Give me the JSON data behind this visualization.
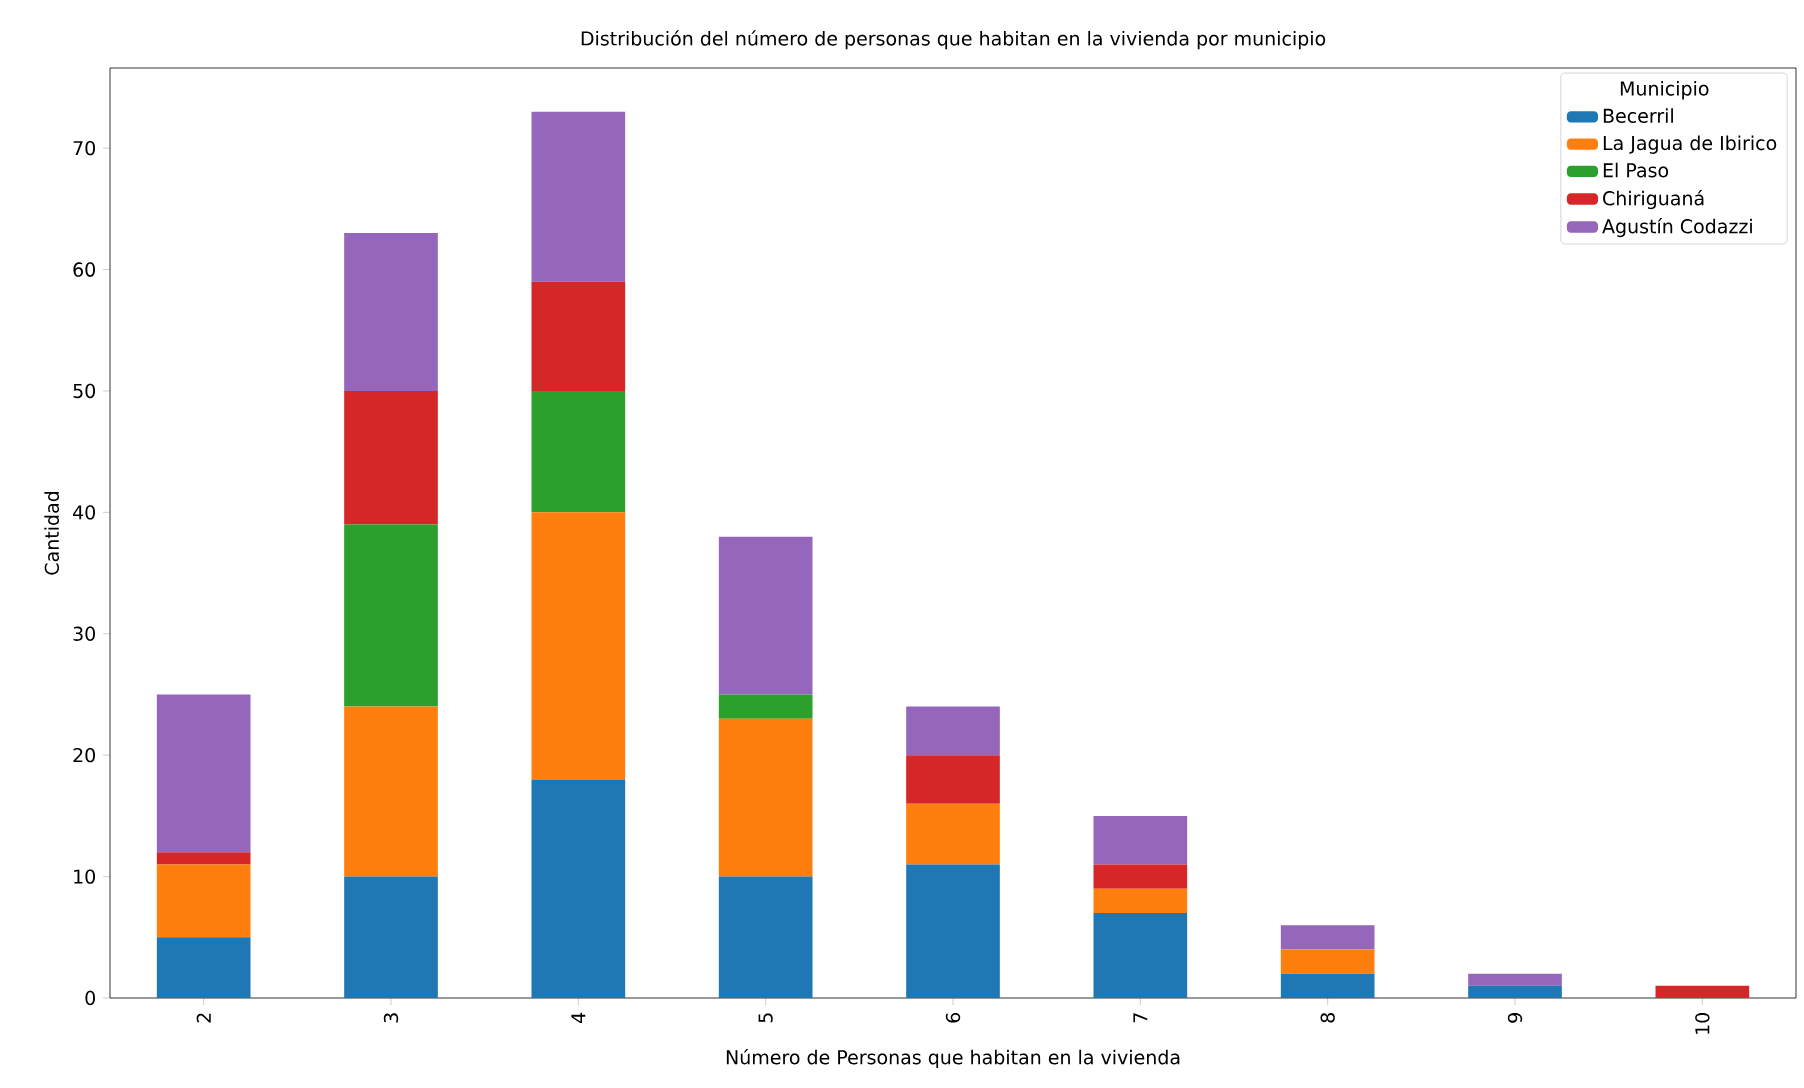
{
  "chart_data": {
    "type": "bar",
    "stacked": true,
    "title": "Distribución del número de personas que habitan en la vivienda por municipio",
    "xlabel": "Número de Personas que habitan en la vivienda",
    "ylabel": "Cantidad",
    "legend_title": "Municipio",
    "legend": "top right",
    "categories": [
      "2",
      "3",
      "4",
      "5",
      "6",
      "7",
      "8",
      "9",
      "10"
    ],
    "series": [
      {
        "name": "Becerril",
        "color": "#1f77b4",
        "values": [
          5,
          10,
          18,
          10,
          11,
          7,
          2,
          1,
          0
        ]
      },
      {
        "name": "La Jagua de Ibirico",
        "color": "#ff7f0e",
        "values": [
          6,
          14,
          22,
          13,
          5,
          2,
          2,
          0,
          0
        ]
      },
      {
        "name": "El Paso",
        "color": "#2ca02c",
        "values": [
          0,
          15,
          10,
          2,
          0,
          0,
          0,
          0,
          0
        ]
      },
      {
        "name": "Chiriguaná",
        "color": "#d62728",
        "values": [
          1,
          11,
          9,
          0,
          4,
          2,
          0,
          0,
          1
        ]
      },
      {
        "name": "Agustín Codazzi",
        "color": "#9467bd",
        "values": [
          13,
          13,
          14,
          13,
          4,
          4,
          2,
          1,
          0
        ]
      }
    ],
    "ylim": [
      0,
      76.6
    ],
    "yticks": [
      0,
      10,
      20,
      30,
      40,
      50,
      60,
      70
    ]
  }
}
